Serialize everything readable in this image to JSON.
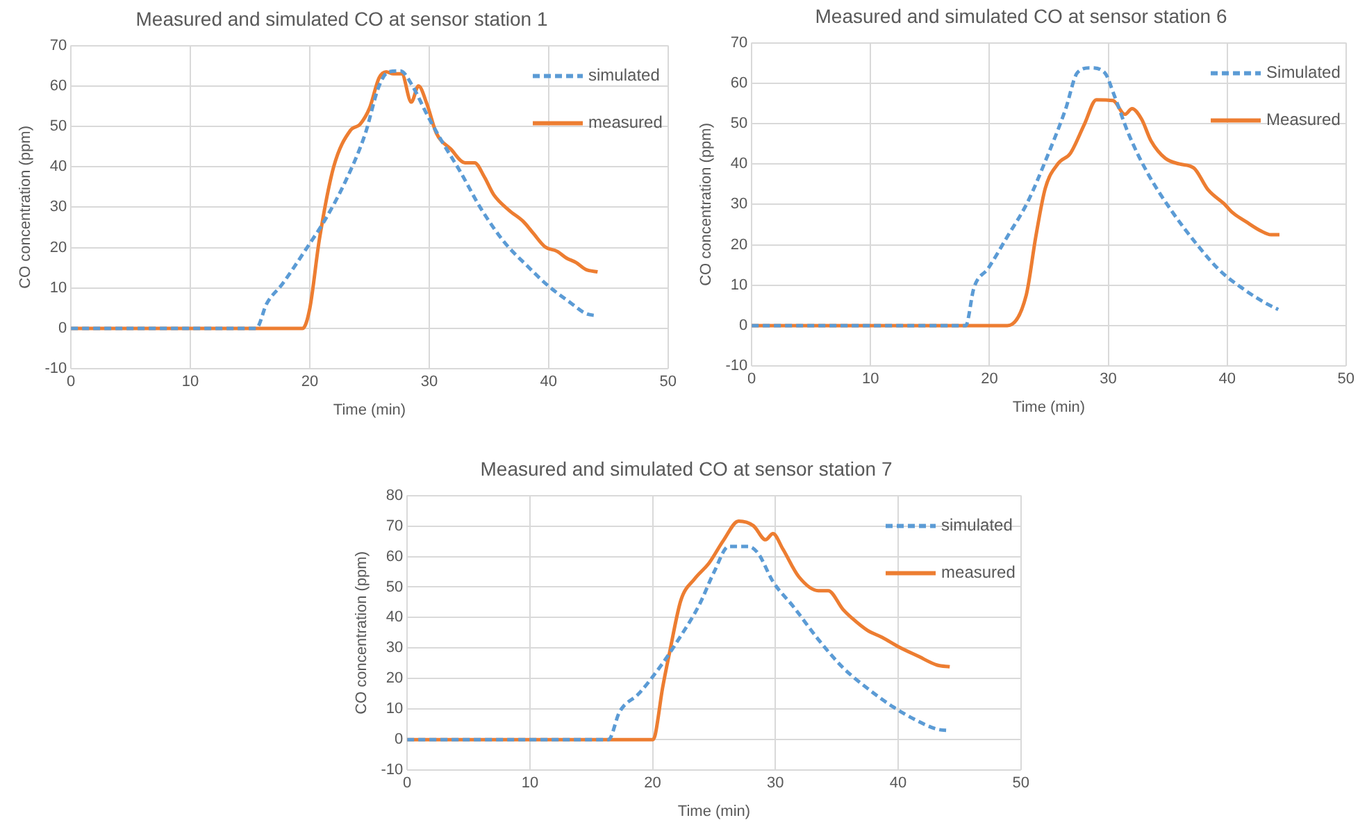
{
  "chart_data": [
    {
      "type": "line",
      "title": "Measured and simulated CO at sensor station 1",
      "xlabel": "Time (min)",
      "ylabel": "CO concentration (ppm)",
      "xlim": [
        0,
        50
      ],
      "xticks": [
        0,
        10,
        20,
        30,
        40,
        50
      ],
      "ylim": [
        -10,
        70
      ],
      "yticks": [
        -10,
        0,
        10,
        20,
        30,
        40,
        50,
        60,
        70
      ],
      "grid": true,
      "legend": "top right",
      "marker": "none",
      "series": [
        {
          "name": "simulated",
          "color": "#5b9bd5",
          "line_style": "dashed",
          "x": [
            0,
            5,
            10,
            15.5,
            16.4,
            17.7,
            19.7,
            21.4,
            23,
            24.6,
            25.8,
            26.6,
            27.6,
            28.6,
            29.8,
            31,
            32.6,
            34.3,
            36.3,
            38.3,
            39.9,
            41.9,
            43.1,
            44.1
          ],
          "values": [
            0,
            0,
            0,
            0,
            6.2,
            11,
            19.7,
            27.5,
            36.5,
            47.8,
            60,
            63.5,
            63.7,
            60,
            53,
            46.6,
            38.8,
            29.8,
            21.3,
            15.2,
            10.7,
            6.2,
            3.7,
            3.1
          ]
        },
        {
          "name": "measured",
          "color": "#ed7d31",
          "line_style": "solid",
          "x": [
            0,
            5,
            10,
            15,
            19.4,
            20,
            20.8,
            22,
            23.4,
            24.2,
            25,
            25.8,
            26.4,
            27,
            27.7,
            28.5,
            29.1,
            29.8,
            30.6,
            31.8,
            33,
            33.8,
            34.6,
            35.4,
            36.7,
            37.9,
            38.7,
            39.7,
            40.7,
            41.5,
            42.3,
            43.1,
            44.1
          ],
          "values": [
            0,
            0,
            0,
            0,
            0,
            5,
            22,
            40,
            49,
            50.5,
            54.5,
            62,
            63.5,
            63,
            63,
            56,
            60,
            55.6,
            48.3,
            44.4,
            41,
            41,
            37.6,
            33.1,
            29.2,
            26.4,
            23.6,
            20.2,
            19.1,
            17.4,
            16.3,
            14.6,
            14
          ]
        }
      ]
    },
    {
      "type": "line",
      "title": "Measured and simulated CO at sensor station 6",
      "xlabel": "Time (min)",
      "ylabel": "CO concentration (ppm)",
      "xlim": [
        0,
        50
      ],
      "xticks": [
        0,
        10,
        20,
        30,
        40,
        50
      ],
      "ylim": [
        -10,
        70
      ],
      "yticks": [
        -10,
        0,
        10,
        20,
        30,
        40,
        50,
        60,
        70
      ],
      "grid": true,
      "legend": "top right",
      "marker": "none",
      "series": [
        {
          "name": "Simulated",
          "color": "#5b9bd5",
          "line_style": "dashed",
          "x": [
            0,
            5,
            10,
            15,
            18,
            18.7,
            19.9,
            21.5,
            23.2,
            24.8,
            26.4,
            27.4,
            28.5,
            29.7,
            30.5,
            31.7,
            33.3,
            35.4,
            37.4,
            39.4,
            41.5,
            43.1,
            44.3
          ],
          "values": [
            0,
            0,
            0,
            0,
            0,
            9.4,
            14.2,
            22,
            30.5,
            41.4,
            53.5,
            62.6,
            63.8,
            62.6,
            57,
            47.5,
            37.8,
            28.1,
            20.3,
            13.6,
            8.8,
            5.8,
            4
          ]
        },
        {
          "name": "Measured",
          "color": "#ed7d31",
          "line_style": "solid",
          "x": [
            0,
            5,
            10,
            15,
            21.5,
            23.1,
            23.9,
            24.7,
            25.8,
            26.8,
            28,
            29,
            30.4,
            31.4,
            32,
            32.8,
            33.6,
            34.8,
            36,
            37.2,
            38.4,
            39.8,
            40.4,
            41.6,
            42.8,
            43.7,
            44.4
          ],
          "values": [
            0,
            0,
            0,
            0,
            0,
            7.6,
            22,
            34,
            40.2,
            42.6,
            49.9,
            55.9,
            55.7,
            52.3,
            53.7,
            51.1,
            45.7,
            41.4,
            40,
            39,
            33.6,
            30,
            28.1,
            25.7,
            23.5,
            22.5,
            22.5
          ]
        }
      ]
    },
    {
      "type": "line",
      "title": "Measured and simulated CO at sensor station 7",
      "xlabel": "Time (min)",
      "ylabel": "CO concentration (ppm)",
      "xlim": [
        0,
        50
      ],
      "xticks": [
        0,
        10,
        20,
        30,
        40,
        50
      ],
      "ylim": [
        -10,
        80
      ],
      "yticks": [
        -10,
        0,
        10,
        20,
        30,
        40,
        50,
        60,
        70,
        80
      ],
      "grid": true,
      "legend": "top right",
      "marker": "none",
      "series": [
        {
          "name": "simulated",
          "color": "#5b9bd5",
          "line_style": "dashed",
          "x": [
            0,
            5,
            10,
            16.4,
            17.3,
            18.9,
            20.7,
            22.1,
            23.8,
            25,
            26.2,
            27.8,
            28.6,
            29.8,
            31.5,
            33.5,
            35.5,
            37.5,
            39.6,
            41.6,
            43.2,
            44.2
          ],
          "values": [
            0,
            0,
            0,
            0,
            9.1,
            15.2,
            24.4,
            32.8,
            44.2,
            54.9,
            63.3,
            63.3,
            61,
            51.8,
            43.4,
            32.8,
            23.6,
            16.8,
            10.7,
            6.1,
            3.4,
            3
          ]
        },
        {
          "name": "measured",
          "color": "#ed7d31",
          "line_style": "solid",
          "x": [
            0,
            5,
            10,
            15,
            20,
            20.2,
            20.8,
            21.4,
            22.3,
            23.4,
            24.6,
            25.8,
            27,
            28.2,
            29.2,
            29.8,
            30.6,
            31.9,
            33.5,
            34.3,
            35.5,
            36.3,
            37.5,
            38.7,
            40,
            41.6,
            43.2,
            44.2
          ],
          "values": [
            0,
            0,
            0,
            0,
            0,
            1.5,
            16.8,
            29,
            45.7,
            52.6,
            57.9,
            65.5,
            71.6,
            70.1,
            65.5,
            67.5,
            62.5,
            53.4,
            48.8,
            48.8,
            42.7,
            39.6,
            35.8,
            33.5,
            30.5,
            27.4,
            24.4,
            23.9
          ]
        }
      ]
    }
  ]
}
